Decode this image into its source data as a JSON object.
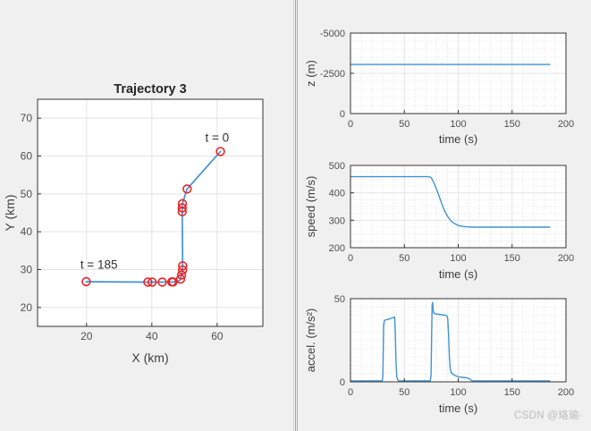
{
  "watermark": "CSDN @珞瑜·",
  "style": {
    "figure_bg": "#f0f0f0",
    "plot_bg": "#ffffff",
    "axis_color": "#333333",
    "grid_color": "#e3e3e3",
    "minor_grid_color": "#d9d9d9",
    "line_color": "#4193d4",
    "marker_color": "#ec2427",
    "tick_text_color": "#4f4f4f",
    "label_text_color": "#3d3d3d",
    "title_text_color": "#262626",
    "annotation_text_color": "#323232",
    "watermark_color": "#bcbcbc"
  },
  "chart_data": [
    {
      "id": "trajectory",
      "type": "scatter",
      "title": "Trajectory 3",
      "xlabel": "X (km)",
      "ylabel": "Y (km)",
      "xlim": [
        5,
        74
      ],
      "ylim": [
        15,
        75
      ],
      "xticks": [
        20,
        40,
        60
      ],
      "yticks": [
        20,
        30,
        40,
        50,
        60,
        70
      ],
      "grid": "major-solid",
      "line_points": [
        [
          61,
          61.2
        ],
        [
          50.8,
          51.3
        ],
        [
          49.35,
          47.4
        ],
        [
          49.3,
          46.3
        ],
        [
          49.3,
          45.3
        ],
        [
          49.45,
          31
        ],
        [
          49.4,
          29.9
        ],
        [
          49.1,
          28.6
        ],
        [
          48.7,
          27.3
        ],
        [
          47.8,
          26.8
        ],
        [
          46.2,
          26.75
        ],
        [
          43.2,
          26.7
        ],
        [
          40.1,
          26.7
        ],
        [
          38.8,
          26.7
        ],
        [
          19.9,
          26.8
        ]
      ],
      "marker_points": [
        [
          61,
          61.2
        ],
        [
          50.8,
          51.3
        ],
        [
          49.35,
          47.4
        ],
        [
          49.3,
          46.3
        ],
        [
          49.3,
          45.3
        ],
        [
          49.45,
          31
        ],
        [
          49.4,
          29.9
        ],
        [
          49.1,
          28.6
        ],
        [
          48.8,
          27.5
        ],
        [
          46.5,
          26.75
        ],
        [
          46.1,
          26.75
        ],
        [
          43.2,
          26.7
        ],
        [
          40.1,
          26.7
        ],
        [
          38.8,
          26.7
        ],
        [
          19.9,
          26.8
        ]
      ],
      "annotations": [
        {
          "text": "t = 0",
          "x": 60,
          "y": 63.8
        },
        {
          "text": "t = 185",
          "x": 23.8,
          "y": 30.2
        }
      ]
    },
    {
      "id": "altitude",
      "type": "line",
      "xlabel": "time (s)",
      "ylabel": "z (m)",
      "xlim": [
        0,
        200
      ],
      "ylim": [
        0,
        -5000
      ],
      "y_direction": "reverse",
      "xticks": [
        0,
        50,
        100,
        150,
        200
      ],
      "yticks": [
        0,
        -2500,
        -5000
      ],
      "grid": "major+minor",
      "x_minor_step": 10,
      "y_minor_step": 500,
      "points": [
        [
          0,
          -3050
        ],
        [
          185,
          -3050
        ]
      ]
    },
    {
      "id": "speed",
      "type": "line",
      "xlabel": "time (s)",
      "ylabel": "speed (m/s)",
      "xlim": [
        0,
        200
      ],
      "ylim": [
        200,
        500
      ],
      "xticks": [
        0,
        50,
        100,
        150,
        200
      ],
      "yticks": [
        200,
        300,
        400,
        500
      ],
      "grid": "major+minor",
      "x_minor_step": 10,
      "y_minor_step": 25,
      "points": [
        [
          0,
          459
        ],
        [
          73,
          459
        ],
        [
          75,
          455
        ],
        [
          77,
          440
        ],
        [
          79,
          422
        ],
        [
          81,
          402
        ],
        [
          83,
          380
        ],
        [
          85,
          358
        ],
        [
          87,
          338
        ],
        [
          89,
          322
        ],
        [
          91,
          309
        ],
        [
          93,
          299
        ],
        [
          95,
          292
        ],
        [
          97,
          287
        ],
        [
          99,
          283
        ],
        [
          101,
          280
        ],
        [
          104,
          278
        ],
        [
          108,
          276
        ],
        [
          113,
          275
        ],
        [
          185,
          275
        ]
      ]
    },
    {
      "id": "accel",
      "type": "line",
      "xlabel": "time (s)",
      "ylabel": "accel. (m/s²)",
      "xlim": [
        0,
        200
      ],
      "ylim": [
        0,
        50
      ],
      "xticks": [
        0,
        50,
        100,
        150,
        200
      ],
      "yticks": [
        0,
        50
      ],
      "grid": "major+minor",
      "x_minor_step": 10,
      "y_minor_step": 5,
      "points": [
        [
          0,
          0.6
        ],
        [
          29.5,
          0.6
        ],
        [
          30,
          3
        ],
        [
          30.8,
          34
        ],
        [
          31.5,
          37
        ],
        [
          34,
          37.5
        ],
        [
          37,
          38
        ],
        [
          40,
          38.7
        ],
        [
          41,
          39
        ],
        [
          41.6,
          30
        ],
        [
          42.2,
          12
        ],
        [
          43,
          3
        ],
        [
          44,
          1
        ],
        [
          45,
          0.6
        ],
        [
          74,
          0.6
        ],
        [
          74.8,
          4
        ],
        [
          75.3,
          25
        ],
        [
          75.8,
          46
        ],
        [
          76.2,
          47.8
        ],
        [
          76.8,
          43
        ],
        [
          77.4,
          41.2
        ],
        [
          79,
          40.8
        ],
        [
          82,
          40.6
        ],
        [
          85,
          40.3
        ],
        [
          88,
          40
        ],
        [
          89.5,
          39.7
        ],
        [
          90.3,
          38
        ],
        [
          91,
          28
        ],
        [
          91.8,
          15
        ],
        [
          92.5,
          8
        ],
        [
          93.5,
          5.5
        ],
        [
          95,
          4.6
        ],
        [
          97,
          3.8
        ],
        [
          100,
          3
        ],
        [
          104,
          2.7
        ],
        [
          108,
          2.4
        ],
        [
          110,
          2
        ],
        [
          111.5,
          1.2
        ],
        [
          113,
          0.6
        ],
        [
          185,
          0.6
        ]
      ]
    }
  ]
}
